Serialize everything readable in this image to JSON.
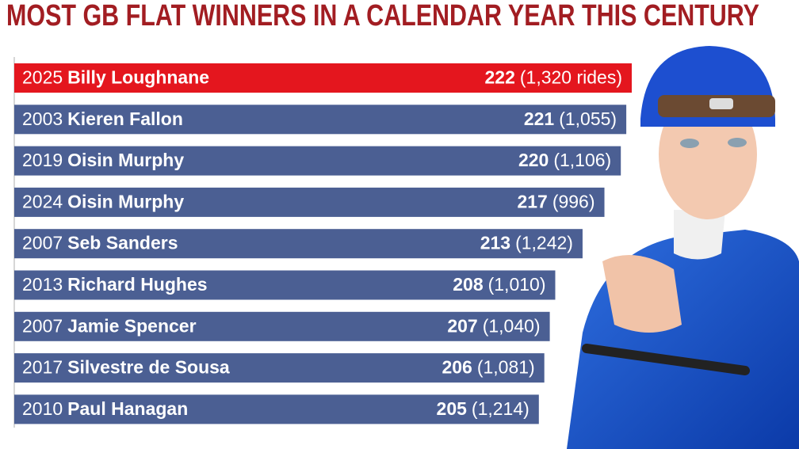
{
  "chart_data": {
    "type": "bar",
    "orientation": "horizontal",
    "title": "MOST GB FLAT WINNERS IN A CALENDAR YEAR THIS CENTURY",
    "years": [
      "2025",
      "2003",
      "2019",
      "2024",
      "2007",
      "2013",
      "2007",
      "2017",
      "2010"
    ],
    "categories": [
      "Billy Loughnane",
      "Kieren Fallon",
      "Oisin Murphy",
      "Oisin Murphy",
      "Seb Sanders",
      "Richard Hughes",
      "Jamie Spencer",
      "Silvestre de Sousa",
      "Paul Hanagan"
    ],
    "values": [
      222,
      221,
      220,
      217,
      213,
      208,
      207,
      206,
      205
    ],
    "rides": [
      "(1,320 rides)",
      "(1,055)",
      "(1,106)",
      "(996)",
      "(1,242)",
      "(1,010)",
      "(1,040)",
      "(1,081)",
      "(1,214)"
    ],
    "colors": [
      "#e4161e",
      "#4b5f93",
      "#4b5f93",
      "#4b5f93",
      "#4b5f93",
      "#4b5f93",
      "#4b5f93",
      "#4b5f93",
      "#4b5f93"
    ],
    "xlim": [
      109,
      222
    ]
  }
}
